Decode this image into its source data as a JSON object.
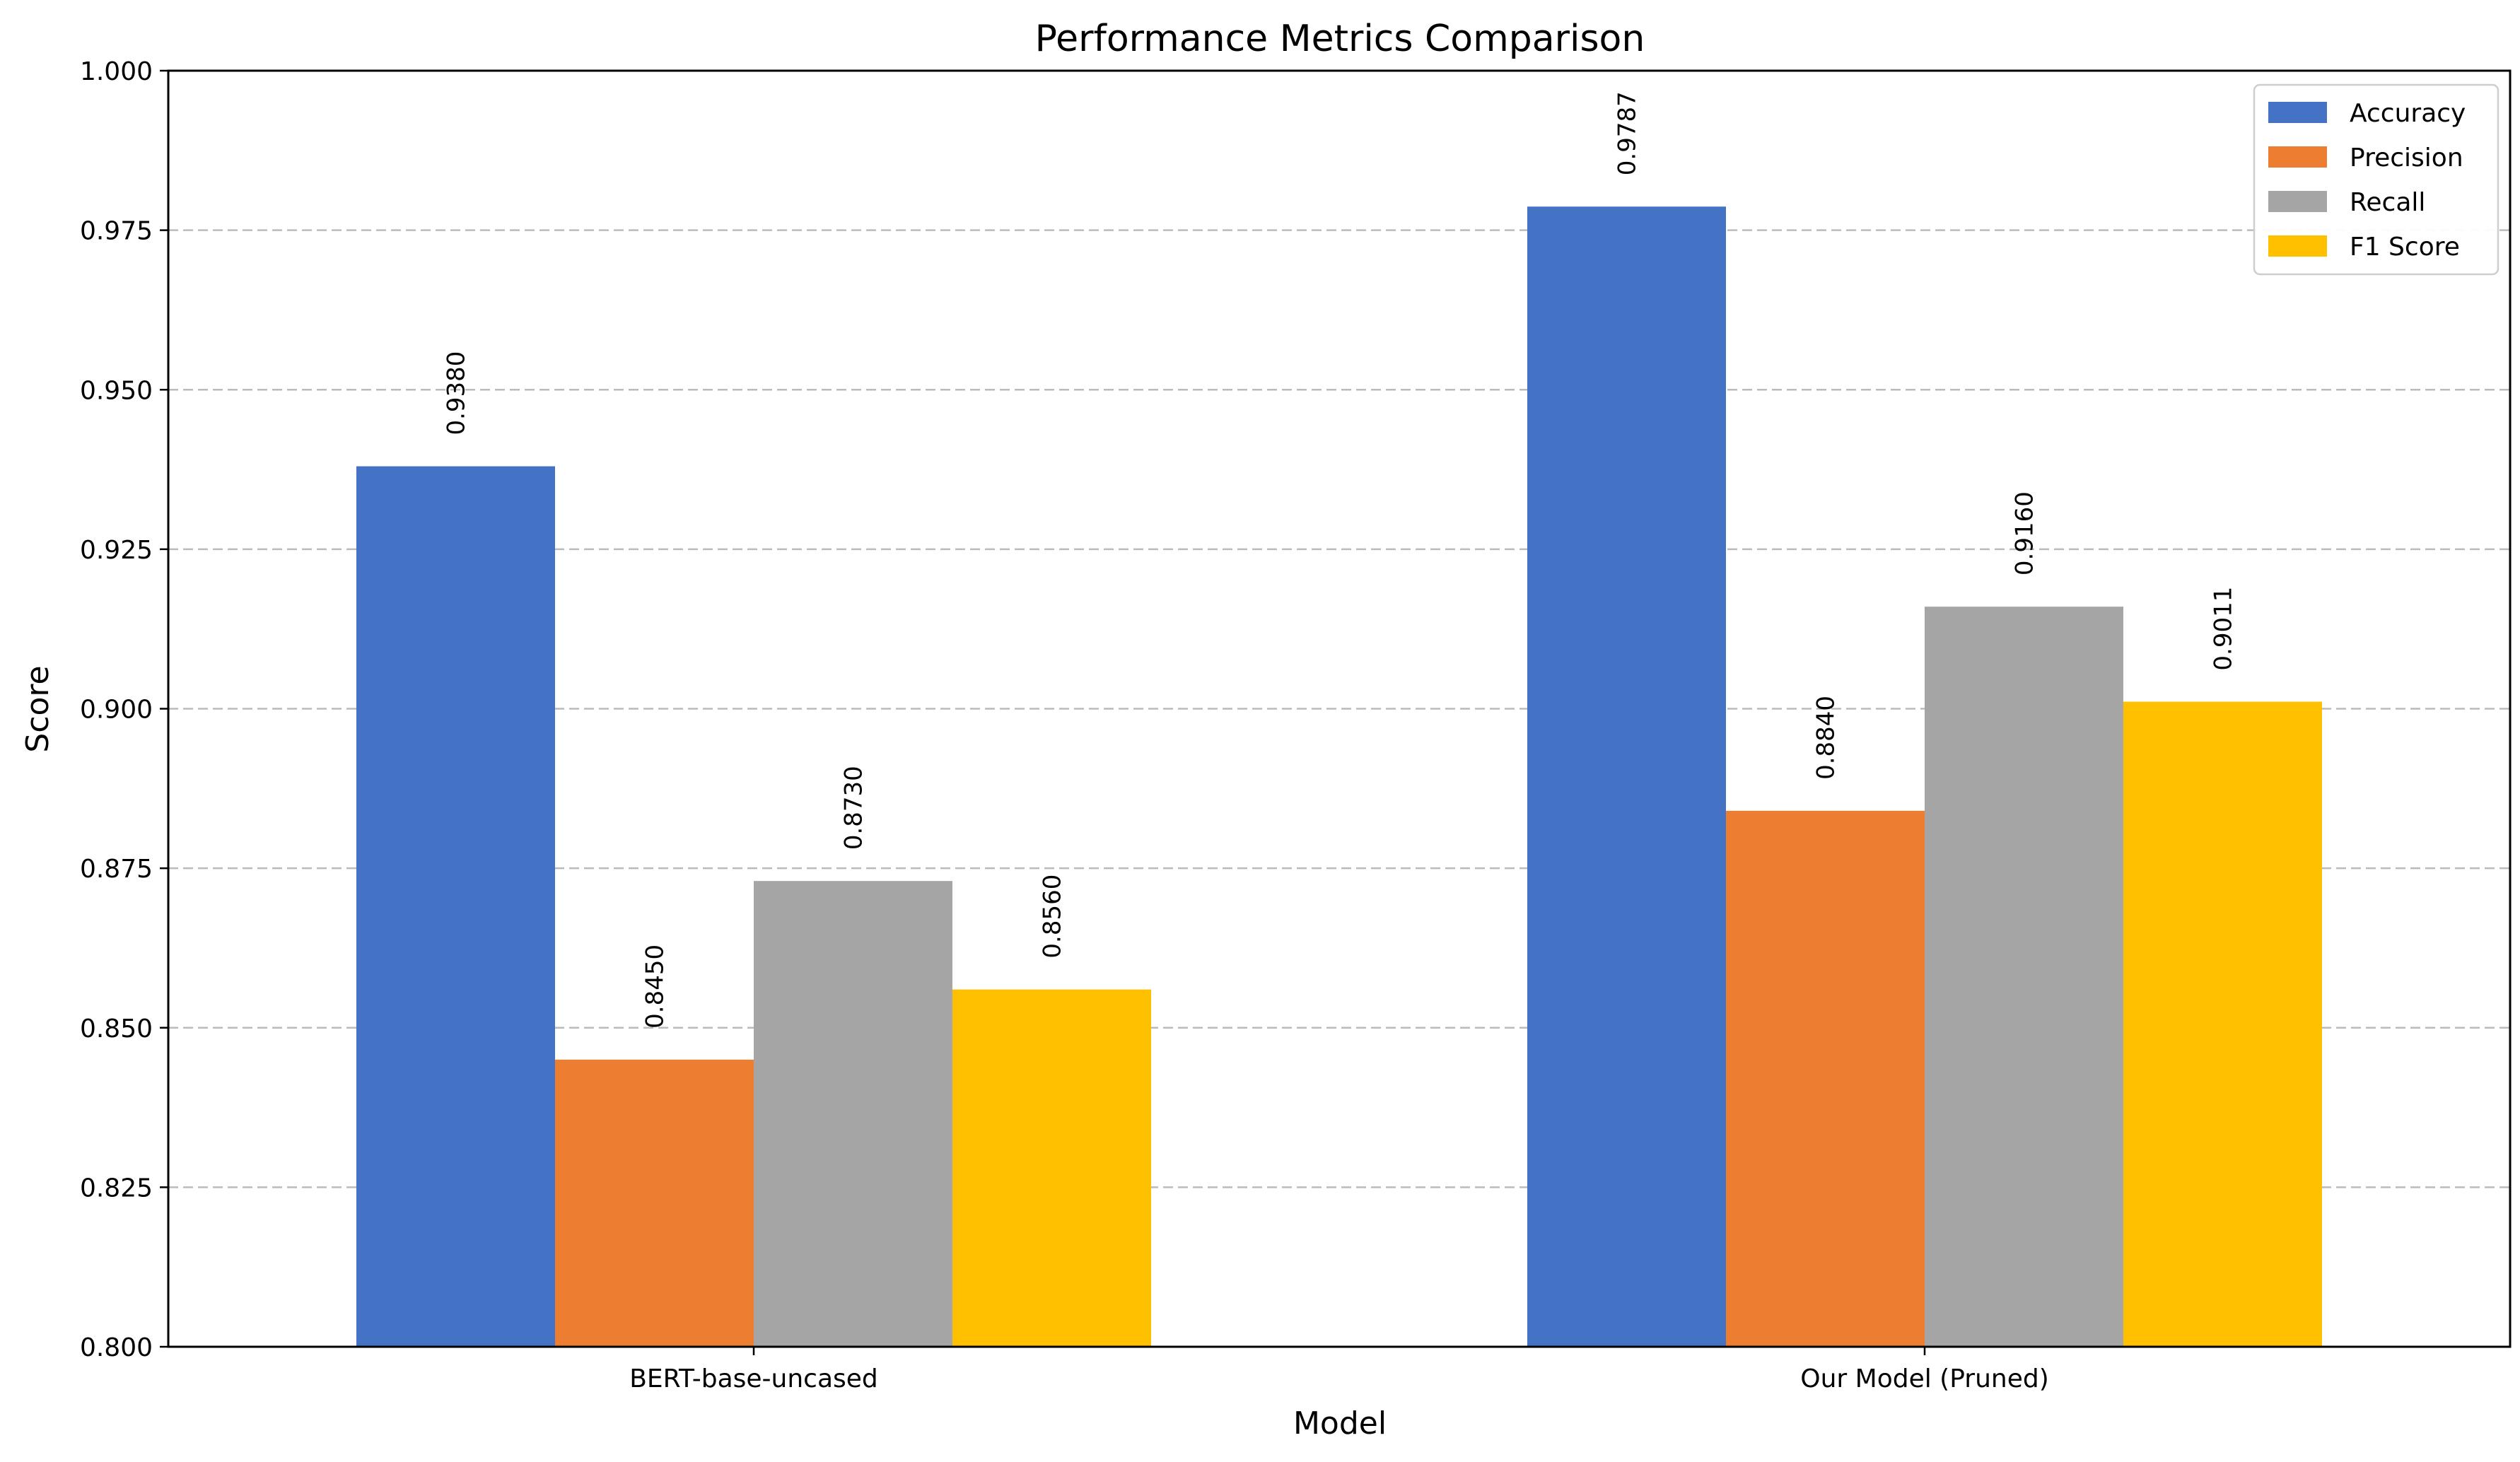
{
  "chart_data": {
    "type": "bar",
    "title": "Performance Metrics Comparison",
    "xlabel": "Model",
    "ylabel": "Score",
    "categories": [
      "BERT-base-uncased",
      "Our Model (Pruned)"
    ],
    "series": [
      {
        "name": "Accuracy",
        "color": "#4472C4",
        "values": [
          0.938,
          0.9787
        ],
        "labels": [
          "0.9380",
          "0.9787"
        ]
      },
      {
        "name": "Precision",
        "color": "#ED7D31",
        "values": [
          0.845,
          0.884
        ],
        "labels": [
          "0.8450",
          "0.8840"
        ]
      },
      {
        "name": "Recall",
        "color": "#A5A5A5",
        "values": [
          0.873,
          0.916
        ],
        "labels": [
          "0.8730",
          "0.9160"
        ]
      },
      {
        "name": "F1 Score",
        "color": "#FFC000",
        "values": [
          0.856,
          0.9011
        ],
        "labels": [
          "0.8560",
          "0.9011"
        ]
      }
    ],
    "ylim": [
      0.8,
      1.0
    ],
    "yticks": [
      "0.800",
      "0.825",
      "0.850",
      "0.875",
      "0.900",
      "0.925",
      "0.950",
      "0.975",
      "1.000"
    ],
    "grid": "y-dashed",
    "legend_position": "top-right"
  }
}
